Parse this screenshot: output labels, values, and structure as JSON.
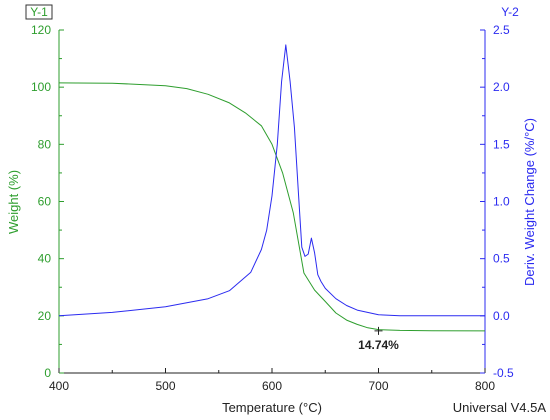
{
  "chart_data": {
    "type": "line",
    "xlabel": "Temperature (°C)",
    "xlim": [
      400,
      800
    ],
    "x_ticks": [
      "400",
      "500",
      "600",
      "700",
      "800"
    ],
    "y1": {
      "tag": "Y-1",
      "label": "Weight (%)",
      "lim": [
        0,
        120
      ],
      "ticks": [
        "0",
        "20",
        "40",
        "60",
        "80",
        "100",
        "120"
      ],
      "color": "#2e9e2e"
    },
    "y2": {
      "tag": "Y-2",
      "label": "Deriv. Weight Change (%/°C)",
      "lim": [
        -0.5,
        2.5
      ],
      "ticks": [
        "-0.5",
        "0.0",
        "0.5",
        "1.0",
        "1.5",
        "2.0",
        "2.5"
      ],
      "color": "#2b2bf0"
    },
    "series": [
      {
        "axis": "y1",
        "x": [
          400,
          450,
          500,
          520,
          540,
          560,
          575,
          590,
          600,
          610,
          620,
          630,
          640,
          650,
          660,
          670,
          680,
          690,
          700,
          720,
          750,
          800
        ],
        "y": [
          101.5,
          101.4,
          100.5,
          99.5,
          97.5,
          94.5,
          91,
          86.5,
          80,
          70,
          56,
          35,
          29,
          25,
          21,
          18.5,
          17,
          15.8,
          15.2,
          14.9,
          14.8,
          14.74
        ]
      },
      {
        "axis": "y2",
        "x": [
          400,
          450,
          500,
          540,
          560,
          580,
          590,
          595,
          600,
          605,
          609,
          613,
          617,
          621,
          625,
          628,
          631,
          634,
          637,
          640,
          643,
          646,
          650,
          660,
          670,
          680,
          700,
          720,
          750,
          800
        ],
        "y": [
          0.0,
          0.03,
          0.08,
          0.15,
          0.22,
          0.38,
          0.58,
          0.75,
          1.05,
          1.5,
          2.05,
          2.37,
          2.05,
          1.65,
          1.05,
          0.6,
          0.52,
          0.54,
          0.68,
          0.55,
          0.36,
          0.3,
          0.24,
          0.15,
          0.09,
          0.05,
          0.01,
          0.0,
          0.0,
          0.0
        ]
      }
    ],
    "annotation": {
      "text": "14.74%",
      "x": 700,
      "y": 14.74
    },
    "footer": "Universal V4.5A",
    "grid": false
  }
}
